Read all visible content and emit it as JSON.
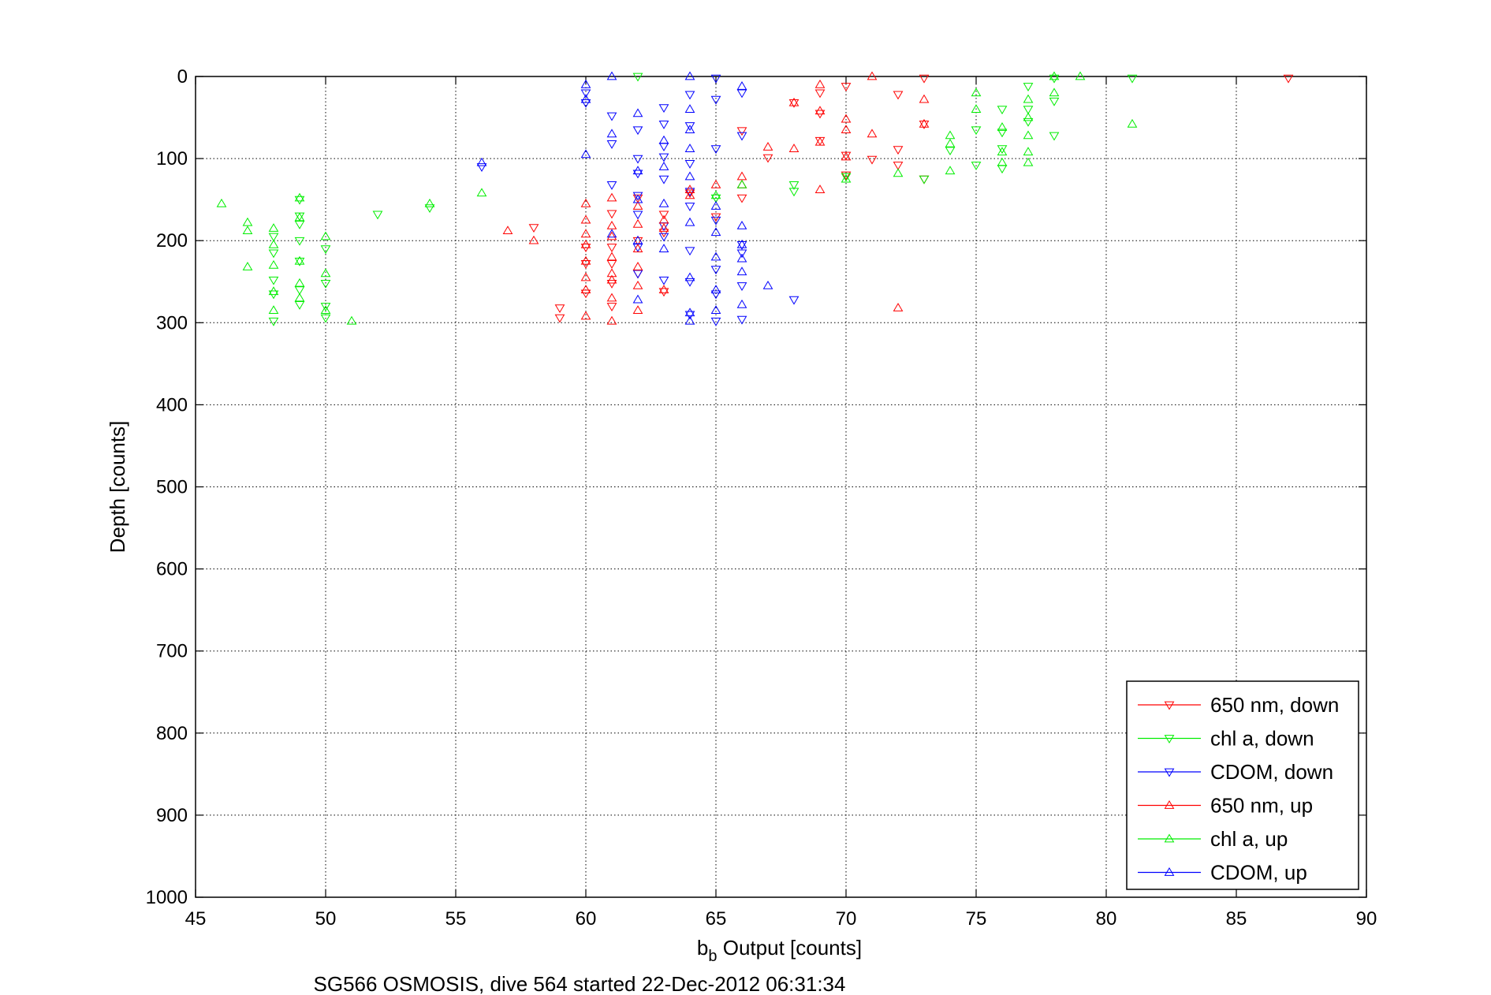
{
  "chart_data": {
    "type": "scatter",
    "title": "",
    "xlabel_main": "b",
    "xlabel_sub": "b",
    "xlabel_rest": " Output [counts]",
    "ylabel": "Depth [counts]",
    "footer": "SG566 OSMOSIS, dive 564 started 22-Dec-2012 06:31:34",
    "xlim": [
      45,
      90
    ],
    "ylim": [
      0,
      1000
    ],
    "y_reversed": true,
    "grid": true,
    "legend_position": "bottom-right",
    "x_ticks": [
      "45",
      "50",
      "55",
      "60",
      "65",
      "70",
      "75",
      "80",
      "85",
      "90"
    ],
    "y_ticks": [
      "0",
      "100",
      "200",
      "300",
      "400",
      "500",
      "600",
      "700",
      "800",
      "900",
      "1000"
    ],
    "series": [
      {
        "name": "650 nm, down",
        "color": "#ff0000",
        "marker": "triangle-down",
        "points": [
          [
            87,
            2
          ],
          [
            73,
            2
          ],
          [
            72,
            22
          ],
          [
            70,
            12
          ],
          [
            69,
            20
          ],
          [
            69,
            45
          ],
          [
            68,
            32
          ],
          [
            73,
            58
          ],
          [
            66,
            66
          ],
          [
            69,
            78
          ],
          [
            70,
            96
          ],
          [
            67,
            99
          ],
          [
            72,
            89
          ],
          [
            71,
            101
          ],
          [
            72,
            108
          ],
          [
            70,
            120
          ],
          [
            73,
            125
          ],
          [
            66,
            148
          ],
          [
            65,
            171
          ],
          [
            58,
            184
          ],
          [
            59,
            282
          ],
          [
            59,
            294
          ],
          [
            60,
            208
          ],
          [
            60,
            228
          ],
          [
            60,
            264
          ],
          [
            61,
            167
          ],
          [
            61,
            208
          ],
          [
            61,
            228
          ],
          [
            61,
            252
          ],
          [
            61,
            280
          ],
          [
            62,
            148
          ],
          [
            62,
            200
          ],
          [
            62,
            240
          ],
          [
            63,
            168
          ],
          [
            63,
            190
          ],
          [
            63,
            262
          ],
          [
            64,
            142
          ]
        ]
      },
      {
        "name": "chl a, down",
        "color": "#00ee00",
        "marker": "triangle-down",
        "points": [
          [
            81,
            2
          ],
          [
            78,
            2
          ],
          [
            78,
            30
          ],
          [
            78,
            72
          ],
          [
            77,
            12
          ],
          [
            77,
            40
          ],
          [
            77,
            55
          ],
          [
            76,
            40
          ],
          [
            76,
            68
          ],
          [
            76,
            88
          ],
          [
            76,
            112
          ],
          [
            75,
            65
          ],
          [
            75,
            108
          ],
          [
            74,
            90
          ],
          [
            73,
            125
          ],
          [
            70,
            122
          ],
          [
            68,
            132
          ],
          [
            68,
            140
          ],
          [
            65,
            148
          ],
          [
            62,
            0
          ],
          [
            54,
            160
          ],
          [
            52,
            168
          ],
          [
            50,
            210
          ],
          [
            50,
            252
          ],
          [
            50,
            280
          ],
          [
            50,
            294
          ],
          [
            49,
            150
          ],
          [
            49,
            170
          ],
          [
            49,
            180
          ],
          [
            49,
            200
          ],
          [
            49,
            225
          ],
          [
            49,
            260
          ],
          [
            49,
            278
          ],
          [
            48,
            195
          ],
          [
            48,
            215
          ],
          [
            48,
            248
          ],
          [
            48,
            265
          ],
          [
            48,
            298
          ]
        ]
      },
      {
        "name": "CDOM, down",
        "color": "#0000ff",
        "marker": "triangle-down",
        "points": [
          [
            68,
            272
          ],
          [
            66,
            20
          ],
          [
            66,
            72
          ],
          [
            66,
            205
          ],
          [
            66,
            215
          ],
          [
            66,
            255
          ],
          [
            66,
            296
          ],
          [
            65,
            2
          ],
          [
            65,
            28
          ],
          [
            65,
            88
          ],
          [
            65,
            175
          ],
          [
            65,
            235
          ],
          [
            65,
            265
          ],
          [
            65,
            298
          ],
          [
            64,
            22
          ],
          [
            64,
            60
          ],
          [
            64,
            106
          ],
          [
            64,
            140
          ],
          [
            64,
            158
          ],
          [
            64,
            212
          ],
          [
            64,
            250
          ],
          [
            64,
            290
          ],
          [
            63,
            38
          ],
          [
            63,
            58
          ],
          [
            63,
            85
          ],
          [
            63,
            98
          ],
          [
            63,
            125
          ],
          [
            63,
            182
          ],
          [
            63,
            195
          ],
          [
            63,
            248
          ],
          [
            62,
            65
          ],
          [
            62,
            100
          ],
          [
            62,
            118
          ],
          [
            62,
            145
          ],
          [
            62,
            168
          ],
          [
            62,
            208
          ],
          [
            62,
            240
          ],
          [
            61,
            48
          ],
          [
            61,
            82
          ],
          [
            61,
            132
          ],
          [
            60,
            32
          ],
          [
            60,
            20
          ],
          [
            56,
            110
          ]
        ]
      },
      {
        "name": "650 nm, up",
        "color": "#ff0000",
        "marker": "triangle-up",
        "points": [
          [
            71,
            0
          ],
          [
            73,
            28
          ],
          [
            73,
            58
          ],
          [
            69,
            10
          ],
          [
            69,
            42
          ],
          [
            68,
            32
          ],
          [
            70,
            52
          ],
          [
            70,
            65
          ],
          [
            71,
            70
          ],
          [
            69,
            80
          ],
          [
            70,
            98
          ],
          [
            67,
            86
          ],
          [
            68,
            88
          ],
          [
            69,
            138
          ],
          [
            72,
            282
          ],
          [
            66,
            122
          ],
          [
            66,
            132
          ],
          [
            65,
            132
          ],
          [
            57,
            188
          ],
          [
            58,
            200
          ],
          [
            60,
            155
          ],
          [
            60,
            175
          ],
          [
            60,
            192
          ],
          [
            60,
            205
          ],
          [
            60,
            225
          ],
          [
            60,
            245
          ],
          [
            60,
            260
          ],
          [
            60,
            292
          ],
          [
            61,
            148
          ],
          [
            61,
            182
          ],
          [
            61,
            195
          ],
          [
            61,
            220
          ],
          [
            61,
            240
          ],
          [
            61,
            248
          ],
          [
            61,
            270
          ],
          [
            61,
            298
          ],
          [
            62,
            158
          ],
          [
            62,
            180
          ],
          [
            62,
            210
          ],
          [
            62,
            232
          ],
          [
            62,
            255
          ],
          [
            62,
            285
          ],
          [
            63,
            175
          ],
          [
            63,
            185
          ],
          [
            63,
            260
          ],
          [
            64,
            138
          ],
          [
            64,
            145
          ]
        ]
      },
      {
        "name": "chl a, up",
        "color": "#00ee00",
        "marker": "triangle-up",
        "points": [
          [
            79,
            0
          ],
          [
            78,
            0
          ],
          [
            78,
            20
          ],
          [
            81,
            58
          ],
          [
            77,
            28
          ],
          [
            77,
            50
          ],
          [
            77,
            72
          ],
          [
            77,
            92
          ],
          [
            77,
            105
          ],
          [
            76,
            62
          ],
          [
            76,
            92
          ],
          [
            76,
            105
          ],
          [
            75,
            20
          ],
          [
            75,
            40
          ],
          [
            74,
            82
          ],
          [
            74,
            72
          ],
          [
            74,
            115
          ],
          [
            72,
            118
          ],
          [
            70,
            125
          ],
          [
            66,
            132
          ],
          [
            65,
            145
          ],
          [
            56,
            142
          ],
          [
            54,
            155
          ],
          [
            51,
            298
          ],
          [
            50,
            195
          ],
          [
            50,
            240
          ],
          [
            50,
            285
          ],
          [
            49,
            148
          ],
          [
            49,
            172
          ],
          [
            49,
            225
          ],
          [
            49,
            252
          ],
          [
            49,
            270
          ],
          [
            48,
            185
          ],
          [
            48,
            205
          ],
          [
            48,
            230
          ],
          [
            48,
            262
          ],
          [
            48,
            285
          ],
          [
            47,
            178
          ],
          [
            47,
            188
          ],
          [
            47,
            232
          ],
          [
            46,
            155
          ]
        ]
      },
      {
        "name": "CDOM, up",
        "color": "#0000ff",
        "marker": "triangle-up",
        "points": [
          [
            67,
            255
          ],
          [
            66,
            12
          ],
          [
            66,
            182
          ],
          [
            66,
            205
          ],
          [
            66,
            222
          ],
          [
            66,
            238
          ],
          [
            66,
            278
          ],
          [
            65,
            158
          ],
          [
            65,
            190
          ],
          [
            65,
            220
          ],
          [
            65,
            260
          ],
          [
            65,
            285
          ],
          [
            64,
            0
          ],
          [
            64,
            40
          ],
          [
            64,
            65
          ],
          [
            64,
            88
          ],
          [
            64,
            122
          ],
          [
            64,
            178
          ],
          [
            64,
            245
          ],
          [
            64,
            288
          ],
          [
            64,
            298
          ],
          [
            63,
            78
          ],
          [
            63,
            110
          ],
          [
            63,
            155
          ],
          [
            63,
            210
          ],
          [
            62,
            45
          ],
          [
            62,
            115
          ],
          [
            62,
            150
          ],
          [
            62,
            200
          ],
          [
            62,
            272
          ],
          [
            61,
            0
          ],
          [
            61,
            70
          ],
          [
            61,
            192
          ],
          [
            60,
            10
          ],
          [
            60,
            28
          ],
          [
            60,
            95
          ],
          [
            56,
            105
          ]
        ]
      }
    ]
  }
}
